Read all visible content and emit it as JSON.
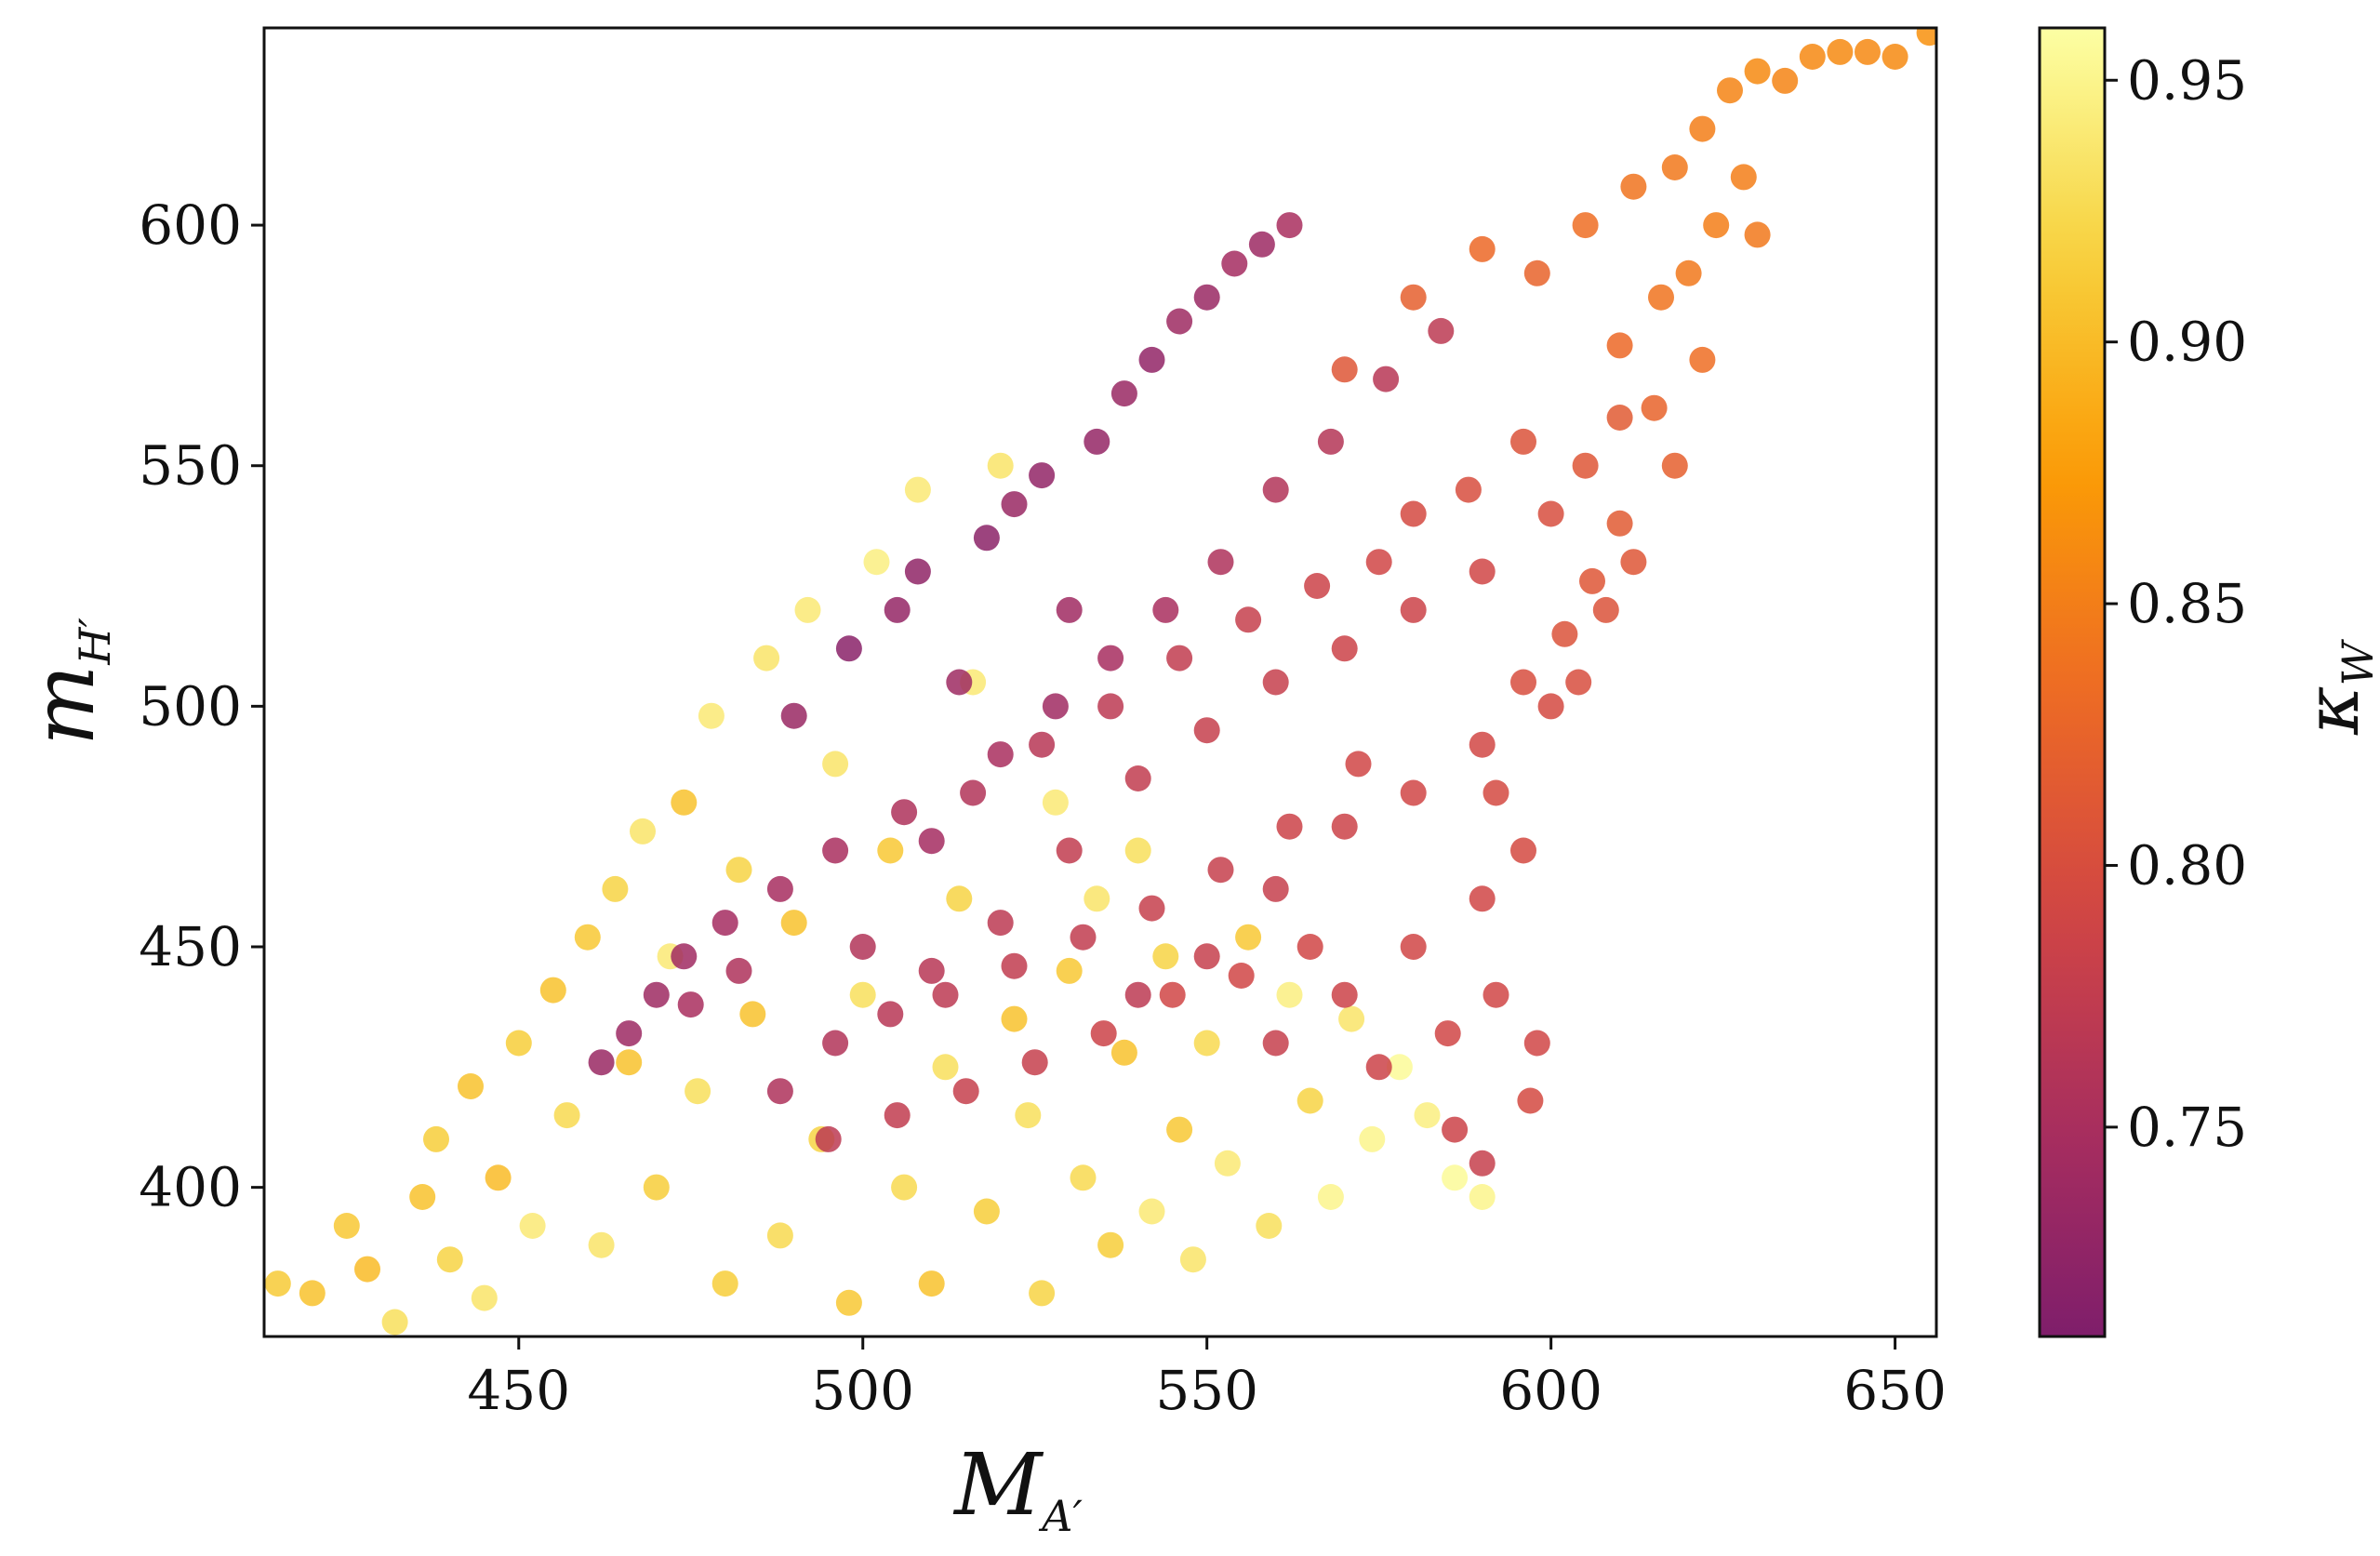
{
  "chart_data": {
    "type": "scatter",
    "x": {
      "label_main": "M",
      "label_sub": "A′",
      "range": [
        413,
        656
      ],
      "ticks": [
        450,
        500,
        550,
        600,
        650
      ],
      "tick_labels": [
        "450",
        "500",
        "550",
        "600",
        "650"
      ]
    },
    "y": {
      "label_main": "m",
      "label_sub": "H′",
      "range": [
        369,
        641
      ],
      "ticks": [
        400,
        450,
        500,
        550,
        600
      ],
      "tick_labels": [
        "400",
        "450",
        "500",
        "550",
        "600"
      ]
    },
    "colorbar": {
      "label": "κ",
      "label_sub": "W",
      "range": [
        0.71,
        0.96
      ],
      "ticks": [
        0.75,
        0.8,
        0.85,
        0.9,
        0.95
      ],
      "tick_labels": [
        "0.75",
        "0.80",
        "0.85",
        "0.90",
        "0.95"
      ],
      "colormap": "inferno",
      "colors": [
        "#000004",
        "#1b0c41",
        "#4a0c6b",
        "#781c6d",
        "#a52c60",
        "#cf4446",
        "#ed6925",
        "#fb9b06",
        "#f7d13d",
        "#fcffa4"
      ]
    },
    "grid": false,
    "series": [
      {
        "points_xy_kappa": [
          [
            415,
            380,
            0.912
          ],
          [
            420,
            378,
            0.905
          ],
          [
            425,
            392,
            0.91
          ],
          [
            428,
            383,
            0.9
          ],
          [
            432,
            372,
            0.93
          ],
          [
            436,
            398,
            0.905
          ],
          [
            438,
            410,
            0.915
          ],
          [
            440,
            385,
            0.92
          ],
          [
            443,
            421,
            0.905
          ],
          [
            445,
            377,
            0.935
          ],
          [
            447,
            402,
            0.9
          ],
          [
            450,
            430,
            0.915
          ],
          [
            452,
            392,
            0.94
          ],
          [
            455,
            441,
            0.905
          ],
          [
            457,
            415,
            0.925
          ],
          [
            460,
            452,
            0.91
          ],
          [
            462,
            388,
            0.935
          ],
          [
            464,
            462,
            0.92
          ],
          [
            466,
            426,
            0.905
          ],
          [
            468,
            474,
            0.935
          ],
          [
            470,
            400,
            0.915
          ],
          [
            472,
            448,
            0.94
          ],
          [
            474,
            480,
            0.905
          ],
          [
            476,
            420,
            0.93
          ],
          [
            478,
            498,
            0.94
          ],
          [
            480,
            380,
            0.915
          ],
          [
            482,
            466,
            0.92
          ],
          [
            484,
            436,
            0.905
          ],
          [
            486,
            510,
            0.935
          ],
          [
            488,
            390,
            0.925
          ],
          [
            490,
            455,
            0.905
          ],
          [
            492,
            520,
            0.94
          ],
          [
            494,
            410,
            0.92
          ],
          [
            496,
            488,
            0.935
          ],
          [
            498,
            376,
            0.91
          ],
          [
            500,
            440,
            0.93
          ],
          [
            502,
            530,
            0.945
          ],
          [
            504,
            470,
            0.91
          ],
          [
            506,
            400,
            0.925
          ],
          [
            508,
            545,
            0.94
          ],
          [
            510,
            380,
            0.905
          ],
          [
            512,
            425,
            0.93
          ],
          [
            514,
            460,
            0.92
          ],
          [
            516,
            505,
            0.94
          ],
          [
            518,
            395,
            0.915
          ],
          [
            520,
            550,
            0.935
          ],
          [
            522,
            435,
            0.905
          ],
          [
            524,
            415,
            0.93
          ],
          [
            526,
            378,
            0.92
          ],
          [
            528,
            480,
            0.94
          ],
          [
            530,
            445,
            0.91
          ],
          [
            532,
            402,
            0.925
          ],
          [
            534,
            460,
            0.935
          ],
          [
            536,
            388,
            0.915
          ],
          [
            538,
            428,
            0.905
          ],
          [
            540,
            470,
            0.93
          ],
          [
            542,
            395,
            0.94
          ],
          [
            544,
            448,
            0.92
          ],
          [
            546,
            412,
            0.91
          ],
          [
            548,
            385,
            0.935
          ],
          [
            550,
            430,
            0.925
          ],
          [
            553,
            405,
            0.94
          ],
          [
            556,
            452,
            0.91
          ],
          [
            559,
            392,
            0.93
          ],
          [
            562,
            440,
            0.945
          ],
          [
            565,
            418,
            0.92
          ],
          [
            568,
            398,
            0.95
          ],
          [
            571,
            435,
            0.935
          ],
          [
            574,
            410,
            0.95
          ],
          [
            578,
            425,
            0.955
          ],
          [
            582,
            415,
            0.945
          ],
          [
            586,
            402,
            0.955
          ],
          [
            590,
            398,
            0.95
          ],
          [
            490,
            498,
            0.735
          ],
          [
            498,
            512,
            0.72
          ],
          [
            505,
            520,
            0.73
          ],
          [
            508,
            528,
            0.725
          ],
          [
            514,
            505,
            0.74
          ],
          [
            518,
            535,
            0.722
          ],
          [
            522,
            542,
            0.735
          ],
          [
            526,
            548,
            0.728
          ],
          [
            530,
            520,
            0.742
          ],
          [
            534,
            555,
            0.73
          ],
          [
            538,
            565,
            0.735
          ],
          [
            542,
            572,
            0.728
          ],
          [
            546,
            580,
            0.74
          ],
          [
            550,
            585,
            0.735
          ],
          [
            554,
            592,
            0.745
          ],
          [
            558,
            596,
            0.738
          ],
          [
            562,
            600,
            0.75
          ],
          [
            510,
            472,
            0.745
          ],
          [
            520,
            490,
            0.75
          ],
          [
            528,
            500,
            0.742
          ],
          [
            536,
            510,
            0.748
          ],
          [
            544,
            520,
            0.75
          ],
          [
            552,
            530,
            0.755
          ],
          [
            560,
            545,
            0.76
          ],
          [
            568,
            555,
            0.762
          ],
          [
            576,
            568,
            0.765
          ],
          [
            584,
            578,
            0.77
          ],
          [
            500,
            450,
            0.76
          ],
          [
            510,
            445,
            0.765
          ],
          [
            520,
            455,
            0.77
          ],
          [
            530,
            470,
            0.775
          ],
          [
            540,
            485,
            0.775
          ],
          [
            550,
            495,
            0.78
          ],
          [
            560,
            505,
            0.78
          ],
          [
            570,
            512,
            0.785
          ],
          [
            580,
            520,
            0.785
          ],
          [
            590,
            528,
            0.79
          ],
          [
            540,
            440,
            0.77
          ],
          [
            550,
            448,
            0.78
          ],
          [
            560,
            462,
            0.78
          ],
          [
            570,
            475,
            0.785
          ],
          [
            580,
            482,
            0.79
          ],
          [
            590,
            492,
            0.792
          ],
          [
            600,
            500,
            0.795
          ],
          [
            560,
            430,
            0.78
          ],
          [
            570,
            440,
            0.785
          ],
          [
            580,
            450,
            0.79
          ],
          [
            590,
            460,
            0.79
          ],
          [
            596,
            470,
            0.795
          ],
          [
            575,
            425,
            0.785
          ],
          [
            585,
            432,
            0.79
          ],
          [
            592,
            440,
            0.79
          ],
          [
            597,
            418,
            0.795
          ],
          [
            590,
            405,
            0.78
          ],
          [
            586,
            412,
            0.785
          ],
          [
            598,
            430,
            0.79
          ],
          [
            604,
            505,
            0.8
          ],
          [
            608,
            520,
            0.805
          ],
          [
            612,
            530,
            0.81
          ],
          [
            600,
            540,
            0.8
          ],
          [
            605,
            550,
            0.81
          ],
          [
            610,
            560,
            0.815
          ],
          [
            596,
            555,
            0.805
          ],
          [
            588,
            545,
            0.8
          ],
          [
            580,
            540,
            0.795
          ],
          [
            575,
            530,
            0.79
          ],
          [
            566,
            525,
            0.785
          ],
          [
            556,
            518,
            0.78
          ],
          [
            546,
            510,
            0.775
          ],
          [
            536,
            500,
            0.77
          ],
          [
            526,
            492,
            0.765
          ],
          [
            516,
            482,
            0.76
          ],
          [
            506,
            478,
            0.755
          ],
          [
            496,
            470,
            0.75
          ],
          [
            488,
            462,
            0.748
          ],
          [
            480,
            455,
            0.745
          ],
          [
            474,
            448,
            0.742
          ],
          [
            470,
            440,
            0.74
          ],
          [
            466,
            432,
            0.738
          ],
          [
            462,
            426,
            0.735
          ],
          [
            570,
            570,
            0.81
          ],
          [
            580,
            585,
            0.82
          ],
          [
            590,
            595,
            0.83
          ],
          [
            598,
            590,
            0.825
          ],
          [
            605,
            600,
            0.835
          ],
          [
            612,
            608,
            0.84
          ],
          [
            618,
            612,
            0.845
          ],
          [
            622,
            620,
            0.85
          ],
          [
            626,
            628,
            0.855
          ],
          [
            630,
            632,
            0.86
          ],
          [
            634,
            630,
            0.855
          ],
          [
            638,
            635,
            0.858
          ],
          [
            642,
            636,
            0.86
          ],
          [
            646,
            636,
            0.858
          ],
          [
            650,
            635,
            0.86
          ],
          [
            655,
            640,
            0.865
          ],
          [
            624,
            600,
            0.85
          ],
          [
            616,
            585,
            0.84
          ],
          [
            610,
            575,
            0.83
          ],
          [
            620,
            590,
            0.845
          ],
          [
            628,
            610,
            0.85
          ],
          [
            630,
            598,
            0.845
          ],
          [
            622,
            572,
            0.835
          ],
          [
            615,
            562,
            0.825
          ],
          [
            618,
            550,
            0.82
          ],
          [
            610,
            538,
            0.815
          ],
          [
            606,
            526,
            0.81
          ],
          [
            602,
            515,
            0.805
          ],
          [
            596,
            505,
            0.8
          ],
          [
            592,
            482,
            0.795
          ],
          [
            488,
            420,
            0.755
          ],
          [
            496,
            430,
            0.76
          ],
          [
            504,
            436,
            0.765
          ],
          [
            512,
            440,
            0.77
          ],
          [
            522,
            446,
            0.775
          ],
          [
            532,
            452,
            0.775
          ],
          [
            542,
            458,
            0.78
          ],
          [
            552,
            466,
            0.78
          ],
          [
            562,
            475,
            0.785
          ],
          [
            572,
            488,
            0.79
          ],
          [
            495,
            410,
            0.77
          ],
          [
            505,
            415,
            0.775
          ],
          [
            515,
            420,
            0.78
          ],
          [
            525,
            426,
            0.78
          ],
          [
            535,
            432,
            0.785
          ],
          [
            545,
            440,
            0.79
          ],
          [
            555,
            444,
            0.79
          ],
          [
            565,
            450,
            0.79
          ],
          [
            475,
            438,
            0.75
          ],
          [
            482,
            445,
            0.755
          ]
        ]
      }
    ]
  }
}
